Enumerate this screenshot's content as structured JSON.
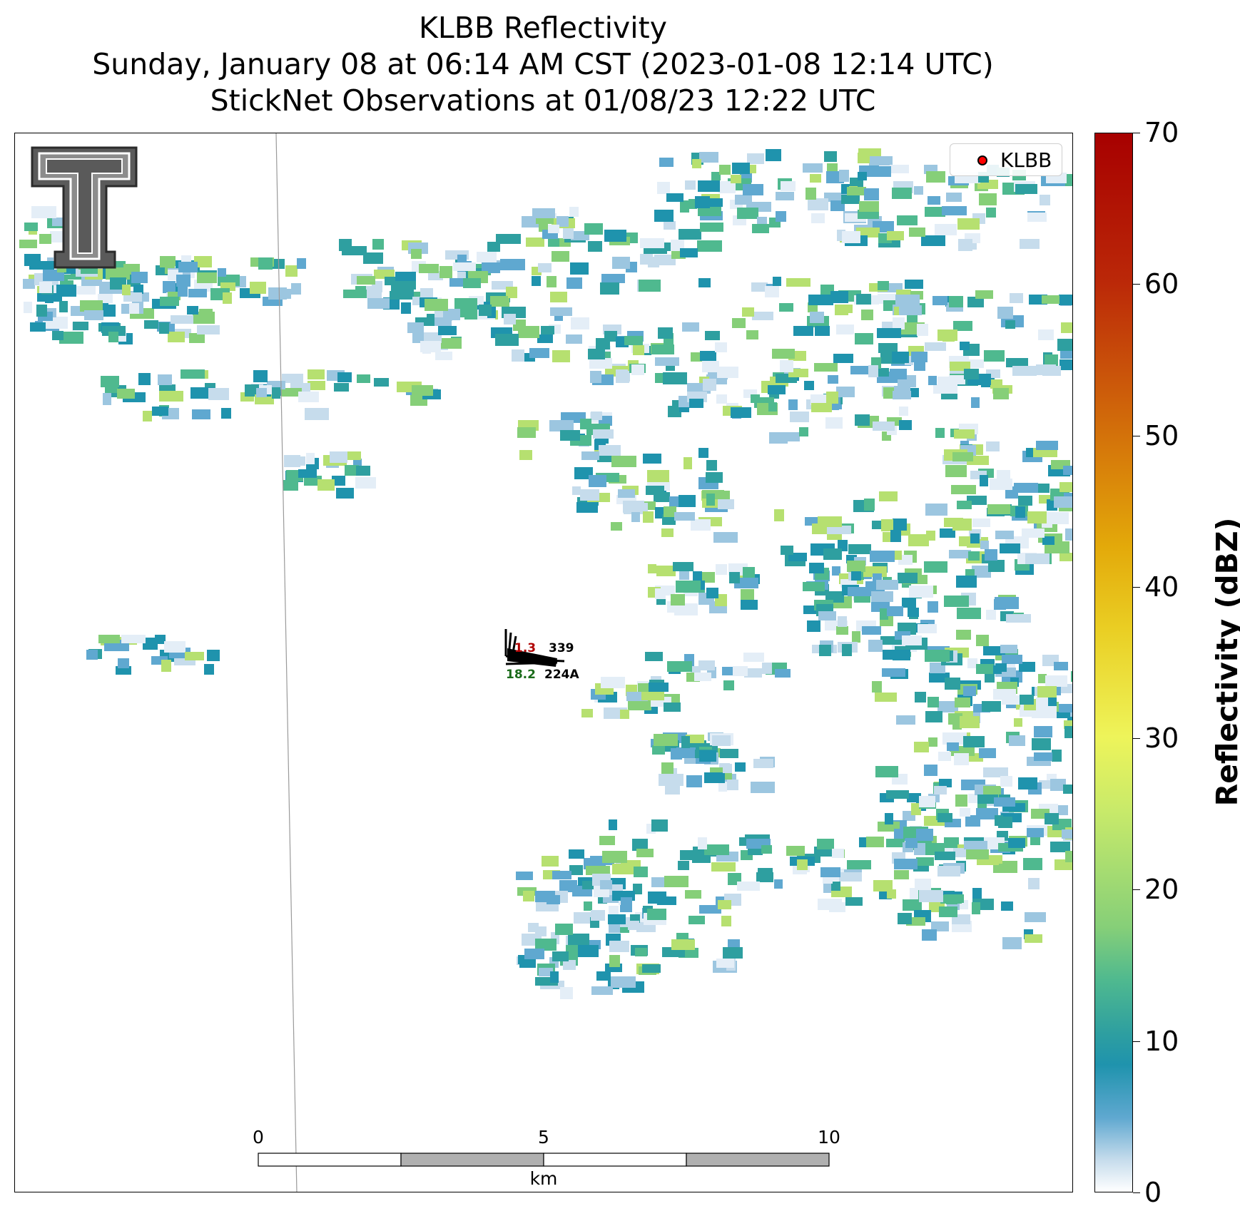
{
  "title": {
    "line1": "KLBB Reflectivity",
    "line2": "Sunday, January 08 at 06:14 AM CST (2023-01-08 12:14 UTC)",
    "line3": "StickNet Observations at 01/08/23 12:22 UTC"
  },
  "legend": {
    "label": "KLBB",
    "marker_color": "#ff0000"
  },
  "logo": {
    "icon": "texas-tech-double-t-logo-icon"
  },
  "stations": [
    {
      "id": "339",
      "temperature": "1.3",
      "dewpoint": ""
    },
    {
      "id": "224A",
      "temperature": "",
      "dewpoint": "18.2"
    }
  ],
  "scale_bar": {
    "ticks": [
      "0",
      "5",
      "10"
    ],
    "unit": "km"
  },
  "colorbar": {
    "title": "Reflectivity (dBZ)",
    "ticks": [
      "0",
      "10",
      "20",
      "30",
      "40",
      "50",
      "60",
      "70"
    ],
    "range": [
      0,
      70
    ]
  },
  "colors": {
    "low": "#c6dcec",
    "mid_low": "#1f93ad",
    "mid": "#4fb98f",
    "mid_high": "#86cf78",
    "high": "#c8ea6a"
  }
}
